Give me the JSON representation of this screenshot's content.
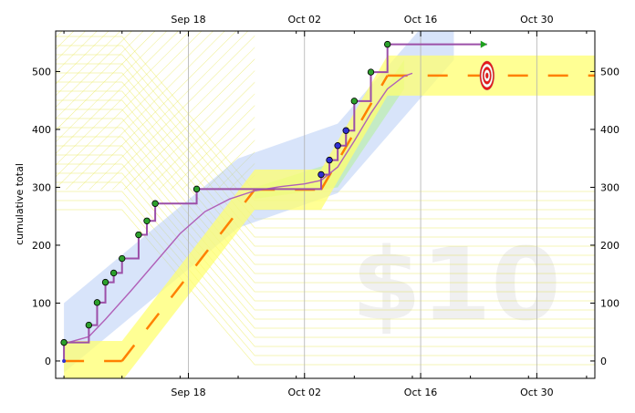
{
  "chart_data": {
    "type": "line",
    "title": "",
    "xlabel": "",
    "ylabel": "cumulative total",
    "x_axis": {
      "type": "date",
      "range": [
        "2014-09-02",
        "2014-11-06"
      ],
      "ticks": [
        {
          "date": "2014-09-18",
          "label": "Sep 18"
        },
        {
          "date": "2014-10-02",
          "label": "Oct 02"
        },
        {
          "date": "2014-10-16",
          "label": "Oct 16"
        },
        {
          "date": "2014-10-30",
          "label": "Oct 30"
        }
      ],
      "ticks_also_on_top": true
    },
    "y_axis": {
      "range": [
        -30,
        570
      ],
      "ticks": [
        0,
        100,
        200,
        300,
        400,
        500
      ],
      "ticks_also_on_right": true
    },
    "grid": {
      "vertical": true,
      "horizontal": false
    },
    "watermark": "$10",
    "colors": {
      "steps": "#9c4fa8",
      "smooth": "#b060b8",
      "points_green": "#2ca02c",
      "points_blue": "#3030d0",
      "road": "#ffff70",
      "dash": "#ff8000",
      "blue_band": "#a9c4f5",
      "green_band": "#b8f0a0",
      "target_red": "#e81818",
      "arrow": "#1ea01e"
    },
    "data_points": [
      {
        "date": "2014-09-03",
        "value": 32,
        "color": "green"
      },
      {
        "date": "2014-09-06",
        "value": 62,
        "color": "green"
      },
      {
        "date": "2014-09-07",
        "value": 101,
        "color": "green"
      },
      {
        "date": "2014-09-08",
        "value": 136,
        "color": "green"
      },
      {
        "date": "2014-09-09",
        "value": 152,
        "color": "green"
      },
      {
        "date": "2014-09-10",
        "value": 177,
        "color": "green"
      },
      {
        "date": "2014-09-12",
        "value": 218,
        "color": "green"
      },
      {
        "date": "2014-09-13",
        "value": 242,
        "color": "green"
      },
      {
        "date": "2014-09-14",
        "value": 272,
        "color": "green"
      },
      {
        "date": "2014-09-19",
        "value": 297,
        "color": "green"
      },
      {
        "date": "2014-10-04",
        "value": 322,
        "color": "blue"
      },
      {
        "date": "2014-10-05",
        "value": 347,
        "color": "blue"
      },
      {
        "date": "2014-10-06",
        "value": 372,
        "color": "blue"
      },
      {
        "date": "2014-10-07",
        "value": 398,
        "color": "blue"
      },
      {
        "date": "2014-10-08",
        "value": 449,
        "color": "green"
      },
      {
        "date": "2014-10-10",
        "value": 499,
        "color": "green"
      },
      {
        "date": "2014-10-12",
        "value": 547,
        "color": "green"
      }
    ],
    "step_start": {
      "date": "2014-09-03",
      "value": 0
    },
    "step_end": {
      "date": "2014-10-24",
      "value": 547
    },
    "smooth_curve": [
      [
        "2014-09-03",
        30
      ],
      [
        "2014-09-06",
        42
      ],
      [
        "2014-09-08",
        72
      ],
      [
        "2014-09-11",
        120
      ],
      [
        "2014-09-14",
        170
      ],
      [
        "2014-09-17",
        220
      ],
      [
        "2014-09-20",
        258
      ],
      [
        "2014-09-23",
        280
      ],
      [
        "2014-09-26",
        294
      ],
      [
        "2014-09-29",
        301
      ],
      [
        "2014-10-02",
        306
      ],
      [
        "2014-10-04",
        312
      ],
      [
        "2014-10-06",
        335
      ],
      [
        "2014-10-08",
        380
      ],
      [
        "2014-10-10",
        428
      ],
      [
        "2014-10-12",
        470
      ],
      [
        "2014-10-14",
        492
      ],
      [
        "2014-10-15",
        497
      ]
    ],
    "road": [
      {
        "x0": "2014-09-03",
        "x1": "2014-09-10",
        "y0": 0,
        "y1": 0
      },
      {
        "x0": "2014-09-10",
        "x1": "2014-09-26",
        "y0": 0,
        "y1": 296
      },
      {
        "x0": "2014-09-26",
        "x1": "2014-10-04",
        "y0": 296,
        "y1": 296
      },
      {
        "x0": "2014-10-04",
        "x1": "2014-10-12",
        "y0": 296,
        "y1": 493
      },
      {
        "x0": "2014-10-12",
        "x1": "2014-11-06",
        "y0": 493,
        "y1": 493
      }
    ],
    "target": {
      "date": "2014-10-24",
      "value": 493
    }
  }
}
